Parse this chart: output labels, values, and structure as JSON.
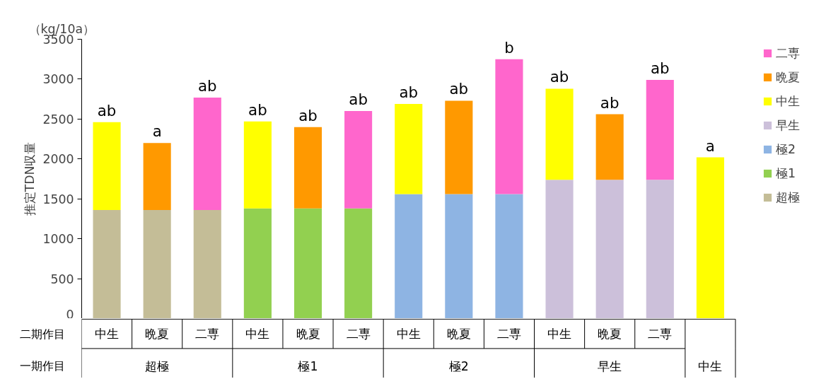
{
  "chart_data": {
    "type": "bar",
    "stacked": true,
    "ylabel": "推定TDN収量",
    "categories": [
      "中生",
      "晩夏",
      "二専",
      "中生",
      "晩夏",
      "二専",
      "中生",
      "晩夏",
      "二専",
      "中生",
      "晩夏",
      "二専",
      null
    ],
    "series": [
      {
        "name": "超極",
        "color": "#c4bd97",
        "values": [
          1360,
          1360,
          1360,
          null,
          null,
          null,
          null,
          null,
          null,
          null,
          null,
          null,
          null
        ]
      },
      {
        "name": "極1",
        "color": "#92d050",
        "values": [
          null,
          null,
          null,
          1380,
          1380,
          1380,
          null,
          null,
          null,
          null,
          null,
          null,
          null
        ]
      },
      {
        "name": "極2",
        "color": "#8eb4e3",
        "values": [
          null,
          null,
          null,
          null,
          null,
          null,
          1560,
          1560,
          1560,
          null,
          null,
          null,
          null
        ]
      },
      {
        "name": "早生",
        "color": "#ccc0da",
        "values": [
          null,
          null,
          null,
          null,
          null,
          null,
          null,
          null,
          null,
          1740,
          1740,
          1740,
          null
        ]
      },
      {
        "name": "中生",
        "color": "#ffff00",
        "values": [
          1100,
          null,
          null,
          1090,
          null,
          null,
          1130,
          null,
          null,
          1140,
          null,
          null,
          2020
        ]
      },
      {
        "name": "晩夏",
        "color": "#ff9900",
        "values": [
          null,
          840,
          null,
          null,
          1020,
          null,
          null,
          1170,
          null,
          null,
          820,
          null,
          null
        ]
      },
      {
        "name": "二専",
        "color": "#ff66cc",
        "values": [
          null,
          null,
          1410,
          null,
          null,
          1220,
          null,
          null,
          1690,
          null,
          null,
          1250,
          null
        ]
      }
    ],
    "ylim": [
      0,
      3500
    ],
    "yticks": [
      0,
      500,
      1000,
      1500,
      2000,
      2500,
      3000,
      3500
    ],
    "grid": false,
    "legend": "right",
    "annotations": [
      "（kg/10a）",
      "二期作目",
      "一期作目",
      "ab",
      "a",
      "ab",
      "ab",
      "ab",
      "ab",
      "ab",
      "ab",
      "b",
      "ab",
      "ab",
      "ab",
      "a",
      "超極",
      "極1",
      "極2",
      "早生",
      "中生"
    ]
  }
}
